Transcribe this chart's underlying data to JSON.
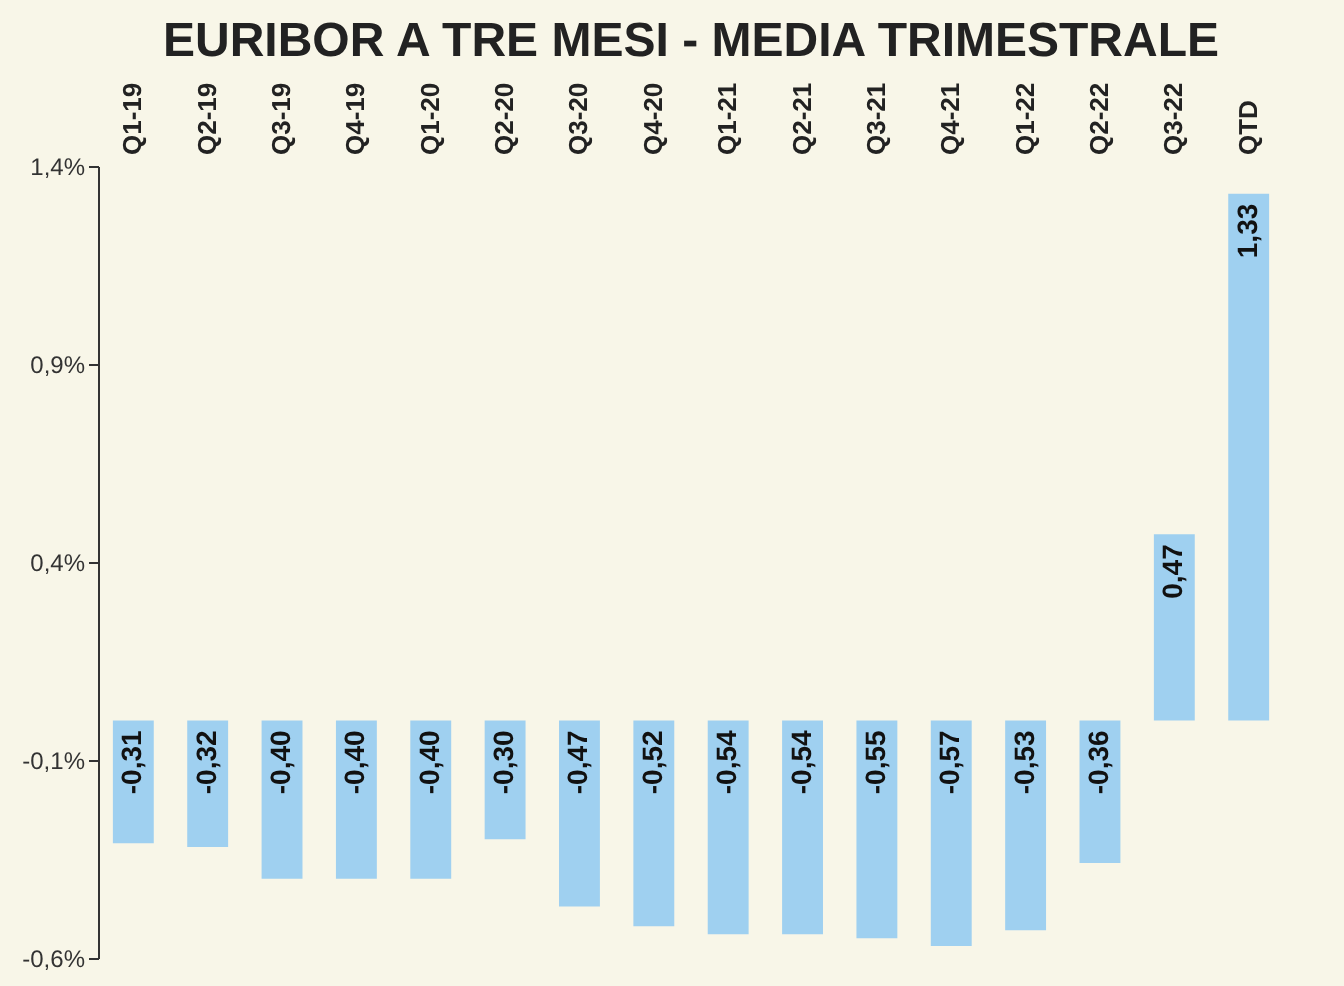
{
  "chart_data": {
    "type": "bar",
    "title": "EURIBOR A TRE MESI - MEDIA TRIMESTRALE",
    "categories": [
      "Q1-19",
      "Q2-19",
      "Q3-19",
      "Q4-19",
      "Q1-20",
      "Q2-20",
      "Q3-20",
      "Q4-20",
      "Q1-21",
      "Q2-21",
      "Q3-21",
      "Q4-21",
      "Q1-22",
      "Q2-22",
      "Q3-22",
      "QTD"
    ],
    "values": [
      -0.31,
      -0.32,
      -0.4,
      -0.4,
      -0.4,
      -0.3,
      -0.47,
      -0.52,
      -0.54,
      -0.54,
      -0.55,
      -0.57,
      -0.53,
      -0.36,
      0.47,
      1.33
    ],
    "value_labels": [
      "-0,31",
      "-0,32",
      "-0,40",
      "-0,40",
      "-0,40",
      "-0,30",
      "-0,47",
      "-0,52",
      "-0,54",
      "-0,54",
      "-0,55",
      "-0,57",
      "-0,53",
      "-0,36",
      "0,47",
      "1,33"
    ],
    "color": "#9fd0f0",
    "ylim": [
      -0.6,
      1.4
    ],
    "yticks": [
      {
        "value": -0.6,
        "label": "-0,6%"
      },
      {
        "value": -0.1,
        "label": "-0,1%"
      },
      {
        "value": 0.4,
        "label": "0,4%"
      },
      {
        "value": 0.9,
        "label": "0,9%"
      },
      {
        "value": 1.4,
        "label": "1,4%"
      }
    ],
    "grid": false
  }
}
